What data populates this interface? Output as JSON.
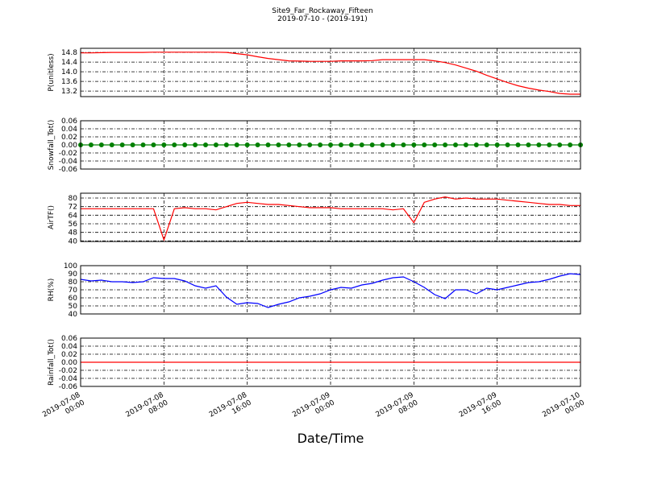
{
  "title": "Site9_Far_Rockaway_Fifteen",
  "subtitle": "2019-07-10 - (2019-191)",
  "xlabel": "Date/Time",
  "x": [
    "2019-07-08 00:00",
    "2019-07-08 01:00",
    "2019-07-08 02:00",
    "2019-07-08 03:00",
    "2019-07-08 04:00",
    "2019-07-08 05:00",
    "2019-07-08 06:00",
    "2019-07-08 07:00",
    "2019-07-08 08:00",
    "2019-07-08 09:00",
    "2019-07-08 10:00",
    "2019-07-08 11:00",
    "2019-07-08 12:00",
    "2019-07-08 13:00",
    "2019-07-08 14:00",
    "2019-07-08 15:00",
    "2019-07-08 16:00",
    "2019-07-08 17:00",
    "2019-07-08 18:00",
    "2019-07-08 19:00",
    "2019-07-08 20:00",
    "2019-07-08 21:00",
    "2019-07-08 22:00",
    "2019-07-08 23:00",
    "2019-07-09 00:00",
    "2019-07-09 01:00",
    "2019-07-09 02:00",
    "2019-07-09 03:00",
    "2019-07-09 04:00",
    "2019-07-09 05:00",
    "2019-07-09 06:00",
    "2019-07-09 07:00",
    "2019-07-09 08:00",
    "2019-07-09 09:00",
    "2019-07-09 10:00",
    "2019-07-09 11:00",
    "2019-07-09 12:00",
    "2019-07-09 13:00",
    "2019-07-09 14:00",
    "2019-07-09 15:00",
    "2019-07-09 16:00",
    "2019-07-09 17:00",
    "2019-07-09 18:00",
    "2019-07-09 19:00",
    "2019-07-09 20:00",
    "2019-07-09 21:00",
    "2019-07-09 22:00",
    "2019-07-09 23:00",
    "2019-07-10 00:00"
  ],
  "xlim": [
    "2019-07-08 00:00",
    "2019-07-10 00:00"
  ],
  "xticks": [
    "2019-07-08 00:00",
    "2019-07-08 08:00",
    "2019-07-08 16:00",
    "2019-07-09 00:00",
    "2019-07-09 08:00",
    "2019-07-09 16:00",
    "2019-07-10 00:00"
  ],
  "grid": true,
  "chart_data": [
    {
      "type": "line",
      "ylabel": "P(unitless)",
      "ylim": [
        12.97,
        14.97
      ],
      "yticks": [
        13.2,
        13.6,
        {
          "value": 14.0,
          "label": "14.0"
        },
        14.4,
        14.8
      ],
      "series": [
        {
          "name": "P",
          "color": "#ff0000",
          "values": [
            14.78,
            14.78,
            14.79,
            14.8,
            14.8,
            14.8,
            14.8,
            14.81,
            14.81,
            14.81,
            14.81,
            14.81,
            14.81,
            14.81,
            14.8,
            14.75,
            14.7,
            14.62,
            14.55,
            14.5,
            14.45,
            14.44,
            14.43,
            14.43,
            14.43,
            14.45,
            14.45,
            14.45,
            14.46,
            14.5,
            14.5,
            14.5,
            14.5,
            14.5,
            14.45,
            14.38,
            14.28,
            14.15,
            14.02,
            13.85,
            13.7,
            13.55,
            13.42,
            13.32,
            13.24,
            13.18,
            13.1,
            13.07,
            13.07
          ]
        }
      ]
    },
    {
      "type": "line",
      "ylabel": "Snowfall_Tot()",
      "ylim": [
        -0.06,
        0.06
      ],
      "yticks": [
        -0.06,
        -0.04,
        -0.02,
        {
          "value": 0,
          "label": "0.00"
        },
        0.02,
        0.04,
        0.06
      ],
      "series": [
        {
          "name": "Snowfall_Tot",
          "color": "#008000",
          "marker": true,
          "values": [
            0,
            0,
            0,
            0,
            0,
            0,
            0,
            0,
            0,
            0,
            0,
            0,
            0,
            0,
            0,
            0,
            0,
            0,
            0,
            0,
            0,
            0,
            0,
            0,
            0,
            0,
            0,
            0,
            0,
            0,
            0,
            0,
            0,
            0,
            0,
            0,
            0,
            0,
            0,
            0,
            0,
            0,
            0,
            0,
            0,
            0,
            0,
            0,
            0
          ]
        }
      ]
    },
    {
      "type": "line",
      "ylabel": "AirTF()",
      "ylim": [
        39.5,
        84.5
      ],
      "yticks": [
        40,
        48,
        56,
        64,
        72,
        80
      ],
      "series": [
        {
          "name": "AirTF",
          "color": "#ff0000",
          "values": [
            70,
            70,
            70,
            70,
            70,
            70,
            70,
            70,
            41,
            70,
            71,
            70,
            70,
            69,
            72,
            75,
            76,
            75,
            74,
            74,
            73,
            72,
            71,
            71,
            71,
            70,
            70,
            70,
            70,
            70,
            69,
            70,
            57,
            76,
            79,
            81,
            79,
            80,
            79,
            79,
            79,
            78,
            77,
            76,
            75,
            74,
            74,
            73,
            73
          ]
        }
      ]
    },
    {
      "type": "line",
      "ylabel": "RH(%)",
      "ylim": [
        40,
        100
      ],
      "yticks": [
        40,
        50,
        60,
        70,
        80,
        90,
        100
      ],
      "series": [
        {
          "name": "RH",
          "color": "#0000ff",
          "values": [
            83,
            81,
            82,
            80,
            80,
            79,
            80,
            85,
            84,
            84,
            81,
            75,
            72,
            75,
            61,
            52,
            54,
            53,
            48,
            52,
            55,
            60,
            62,
            65,
            70,
            73,
            72,
            76,
            78,
            82,
            85,
            86,
            80,
            73,
            64,
            59,
            70,
            70,
            65,
            72,
            70,
            73,
            76,
            79,
            80,
            83,
            87,
            90,
            89
          ]
        }
      ]
    },
    {
      "type": "line",
      "ylabel": "Rainfall_Tot()",
      "ylim": [
        -0.06,
        0.06
      ],
      "yticks": [
        -0.06,
        -0.04,
        -0.02,
        {
          "value": 0,
          "label": "0.00"
        },
        0.02,
        0.04,
        0.06
      ],
      "series": [
        {
          "name": "Rainfall_Tot",
          "color": "#ff0000",
          "values": [
            0,
            0,
            0,
            0,
            0,
            0,
            0,
            0,
            0,
            0,
            0,
            0,
            0,
            0,
            0,
            0,
            0,
            0,
            0,
            0,
            0,
            0,
            0,
            0,
            0,
            0,
            0,
            0,
            0,
            0,
            0,
            0,
            0,
            0,
            0,
            0,
            0,
            0,
            0,
            0,
            0,
            0,
            0,
            0,
            0,
            0,
            0,
            0,
            0
          ]
        }
      ]
    }
  ]
}
